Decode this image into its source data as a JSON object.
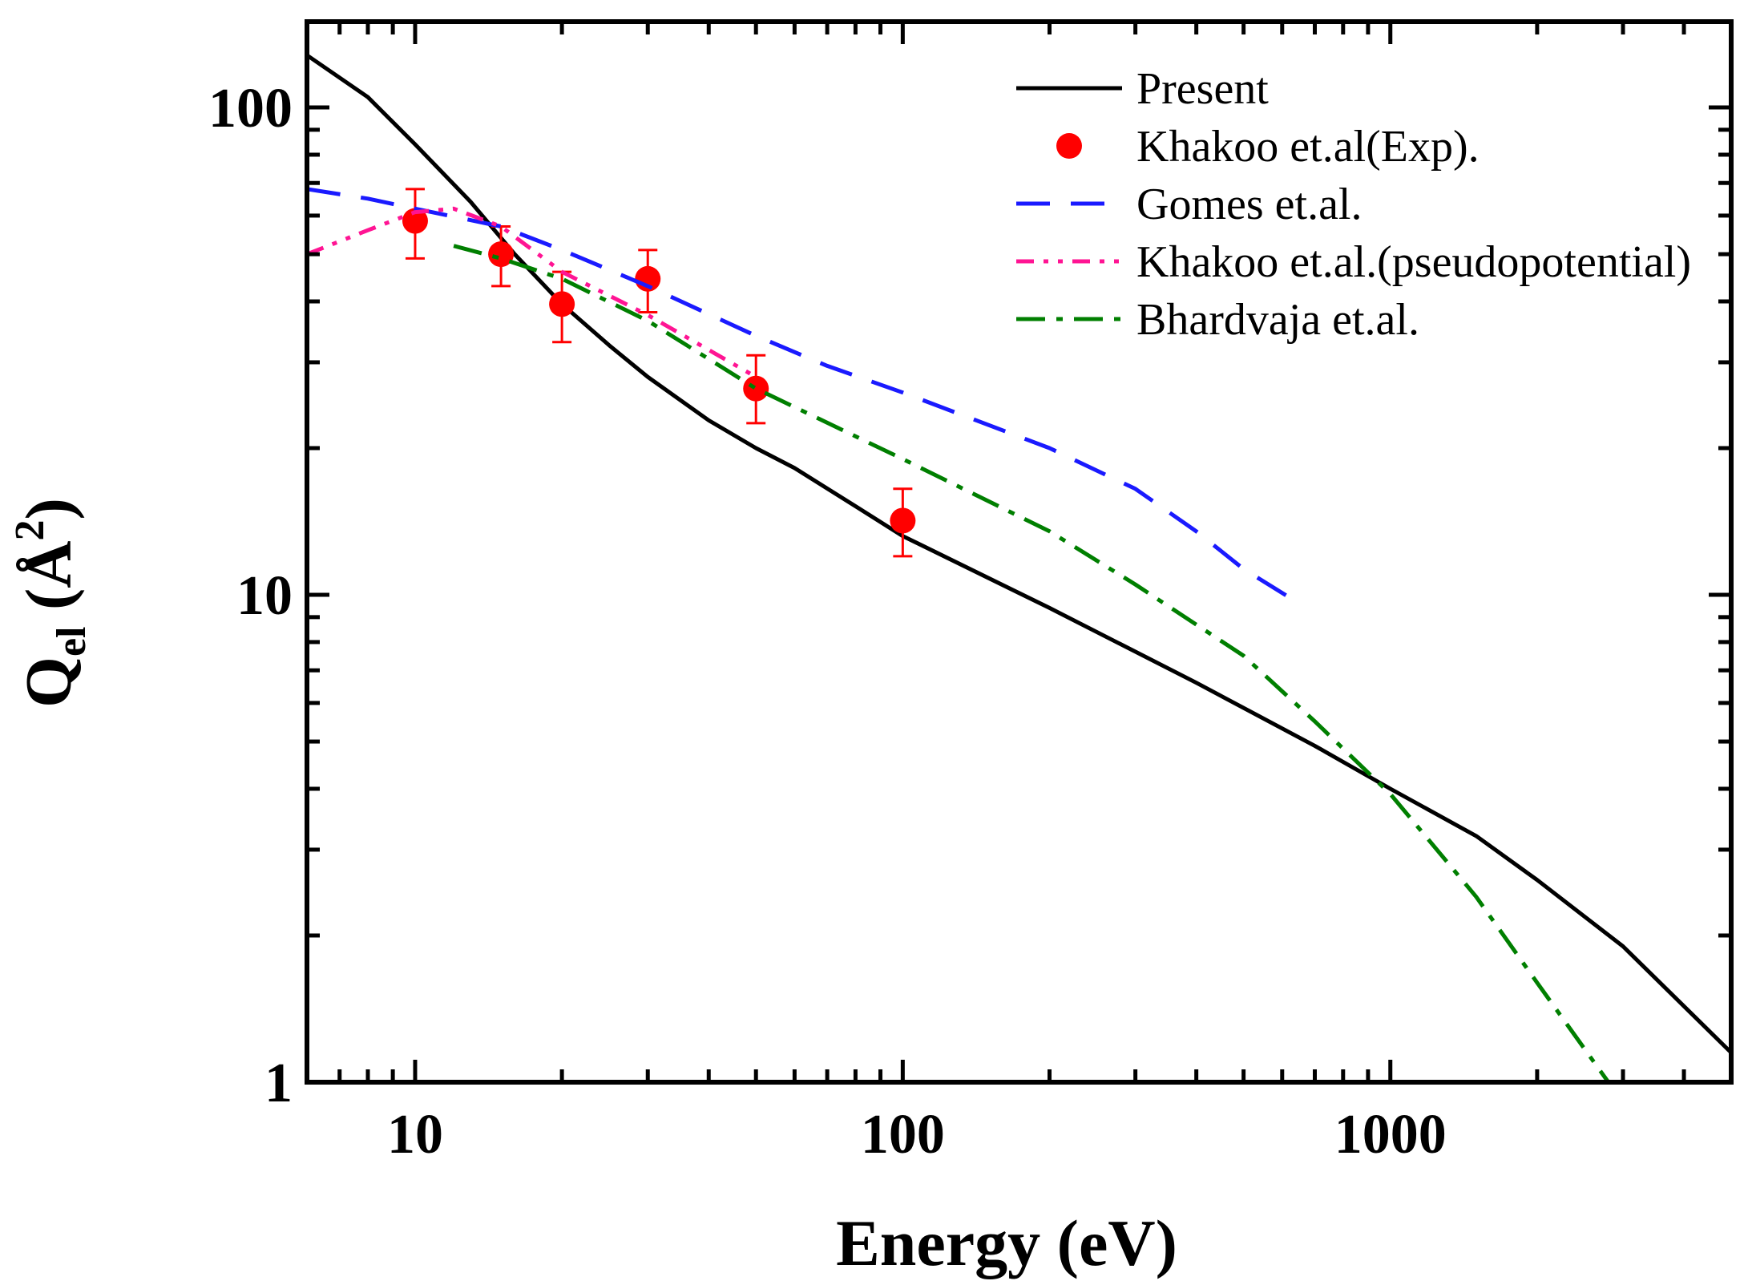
{
  "chart_data": {
    "type": "line",
    "xlabel": "Energy (eV)",
    "ylabel": {
      "main": "Q",
      "sub": "el",
      "unit_open": " (Å",
      "sup": "2",
      "unit_close": ")"
    },
    "xscale": "log",
    "yscale": "log",
    "xlim": [
      6,
      5000
    ],
    "ylim": [
      1,
      150
    ],
    "x_ticks": [
      {
        "value": 10,
        "label": "10"
      },
      {
        "value": 100,
        "label": "100"
      },
      {
        "value": 1000,
        "label": "1000"
      }
    ],
    "y_ticks": [
      {
        "value": 1,
        "label": "1"
      },
      {
        "value": 10,
        "label": "10"
      },
      {
        "value": 100,
        "label": "100"
      }
    ],
    "legend_position": "top-right",
    "series": [
      {
        "name": "Present",
        "style": "solid",
        "color": "#000000",
        "points": [
          [
            6,
            128
          ],
          [
            8,
            105
          ],
          [
            10,
            84
          ],
          [
            13,
            64
          ],
          [
            16,
            50
          ],
          [
            20,
            39.5
          ],
          [
            25,
            32.5
          ],
          [
            30,
            28
          ],
          [
            40,
            22.8
          ],
          [
            50,
            20
          ],
          [
            60,
            18.2
          ],
          [
            80,
            15.2
          ],
          [
            100,
            13.2
          ],
          [
            200,
            9.4
          ],
          [
            400,
            6.6
          ],
          [
            700,
            4.9
          ],
          [
            1000,
            4.0
          ],
          [
            1500,
            3.2
          ],
          [
            2000,
            2.6
          ],
          [
            3000,
            1.9
          ],
          [
            5000,
            1.15
          ]
        ]
      },
      {
        "name": "Khakoo et.al(Exp).",
        "style": "markers",
        "color": "#ff0000",
        "points": [
          {
            "x": 10,
            "y": 58.5,
            "err_low": 49,
            "err_high": 68
          },
          {
            "x": 15,
            "y": 50,
            "err_low": 43,
            "err_high": 57
          },
          {
            "x": 20,
            "y": 39.5,
            "err_low": 33,
            "err_high": 46
          },
          {
            "x": 30,
            "y": 44.5,
            "err_low": 38,
            "err_high": 51
          },
          {
            "x": 50,
            "y": 26.5,
            "err_low": 22.5,
            "err_high": 31
          },
          {
            "x": 100,
            "y": 14.2,
            "err_low": 12,
            "err_high": 16.5
          }
        ]
      },
      {
        "name": "Gomes et.al.",
        "style": "dashed",
        "color": "#1a1aff",
        "points": [
          [
            6,
            68
          ],
          [
            8,
            65
          ],
          [
            10,
            62
          ],
          [
            15,
            57
          ],
          [
            20,
            51
          ],
          [
            30,
            43
          ],
          [
            50,
            34
          ],
          [
            70,
            29.5
          ],
          [
            100,
            26
          ],
          [
            200,
            20
          ],
          [
            300,
            16.5
          ],
          [
            400,
            13.5
          ],
          [
            500,
            11.3
          ],
          [
            650,
            9.6
          ]
        ]
      },
      {
        "name": "Khakoo et.al.(pseudopotential)",
        "style": "dash-dot-dot",
        "color": "#ff1493",
        "points": [
          [
            6,
            50
          ],
          [
            8,
            56
          ],
          [
            10,
            61
          ],
          [
            12,
            62
          ],
          [
            15,
            57
          ],
          [
            20,
            46
          ],
          [
            30,
            37.5
          ],
          [
            50,
            28
          ]
        ]
      },
      {
        "name": "Bhardvaja et.al.",
        "style": "dash-dot",
        "color": "#007f00",
        "points": [
          [
            12,
            52
          ],
          [
            15,
            49
          ],
          [
            20,
            44.5
          ],
          [
            30,
            36.5
          ],
          [
            50,
            26.5
          ],
          [
            100,
            19
          ],
          [
            200,
            13.5
          ],
          [
            300,
            10.5
          ],
          [
            500,
            7.5
          ],
          [
            700,
            5.5
          ],
          [
            1000,
            3.9
          ],
          [
            1500,
            2.4
          ],
          [
            2000,
            1.6
          ],
          [
            2800,
            1.0
          ]
        ]
      }
    ]
  }
}
